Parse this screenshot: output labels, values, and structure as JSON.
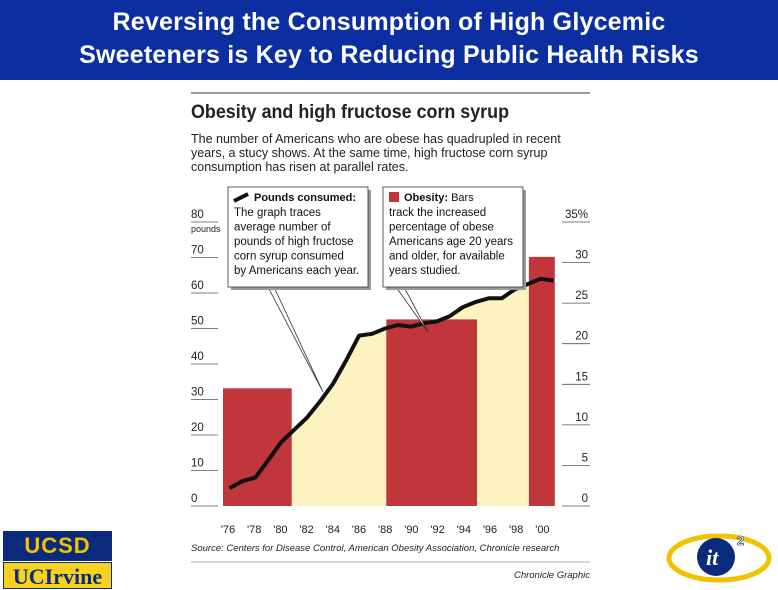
{
  "slide": {
    "title_line1": "Reversing the Consumption of High Glycemic",
    "title_line2": "Sweeteners is Key to Reducing Public Health Risks"
  },
  "logos": {
    "ucsd": "UCSD",
    "uci": "UCIrvine",
    "it2": "it"
  },
  "colors": {
    "banner": "#0b2ea0",
    "bar": "#c0363a",
    "area": "#fdf3c0",
    "line": "#111111"
  },
  "chart_data": {
    "type": "bar",
    "title": "Obesity and high fructose corn syrup",
    "subtitle_lines": [
      "The number of Americans who are obese has quadrupled in recent",
      "years, a stucy shows. At the same time, high fructose corn syrup",
      "consumption has risen at parallel rates."
    ],
    "left_axis": {
      "ticks": [
        "0",
        "10",
        "20",
        "30",
        "40",
        "50",
        "60",
        "70",
        "80"
      ],
      "unit": "pounds",
      "range": [
        0,
        80
      ]
    },
    "right_axis": {
      "ticks": [
        "0",
        "5",
        "10",
        "15",
        "20",
        "25",
        "30",
        "35%"
      ],
      "range": [
        0,
        35
      ]
    },
    "x_ticks": [
      "'76",
      "'78",
      "'80",
      "'82",
      "'84",
      "'86",
      "'88",
      "'90",
      "'92",
      "'94",
      "'96",
      "'98",
      "'00"
    ],
    "x_range": [
      1975,
      2001
    ],
    "bars": [
      {
        "start": 1975.0,
        "end": 1980.3,
        "value": 14.5
      },
      {
        "start": 1987.6,
        "end": 1994.6,
        "value": 23.0
      },
      {
        "start": 1998.6,
        "end": 2000.6,
        "value": 30.7
      }
    ],
    "series": [
      {
        "name": "Pounds consumed",
        "axis": "left",
        "x": [
          1975.5,
          1976.5,
          1977.5,
          1978.5,
          1979.5,
          1980.5,
          1981.5,
          1982.5,
          1983.5,
          1984.5,
          1985.5,
          1986.5,
          1987.5,
          1988.5,
          1989.5,
          1990.5,
          1991.5,
          1992.5,
          1993.5,
          1994.5,
          1995.5,
          1996.5,
          1997.5,
          1998.5,
          1999.5,
          2000.5
        ],
        "values": [
          5,
          7,
          8,
          13,
          18,
          21.5,
          25,
          29.5,
          34.5,
          41,
          48,
          48.5,
          50,
          51,
          50.5,
          51.5,
          52,
          53.5,
          56,
          57.5,
          58.5,
          58.5,
          61,
          62.5,
          64,
          63.5
        ]
      },
      {
        "name": "Obesity",
        "axis": "right",
        "x": [
          1975,
          1980,
          1988,
          1994,
          1999
        ],
        "values": [
          14.5,
          14.5,
          23,
          23,
          30.7
        ]
      }
    ],
    "callouts": [
      {
        "heading": "Pounds consumed:",
        "lines": [
          "The graph traces",
          "average number of",
          "pounds of high fructose",
          "corn syrup consumed",
          "by Americans each year."
        ]
      },
      {
        "heading": "Obesity:",
        "heading_rest": "Bars",
        "lines": [
          "track the increased",
          "percentage of obese",
          "Americans age 20 years",
          "and older, for available",
          "years studied."
        ]
      }
    ],
    "source": "Source: Centers for Disease Control, American Obesity Association, Chronicle research",
    "credit": "Chronicle Graphic",
    "grid": false
  }
}
